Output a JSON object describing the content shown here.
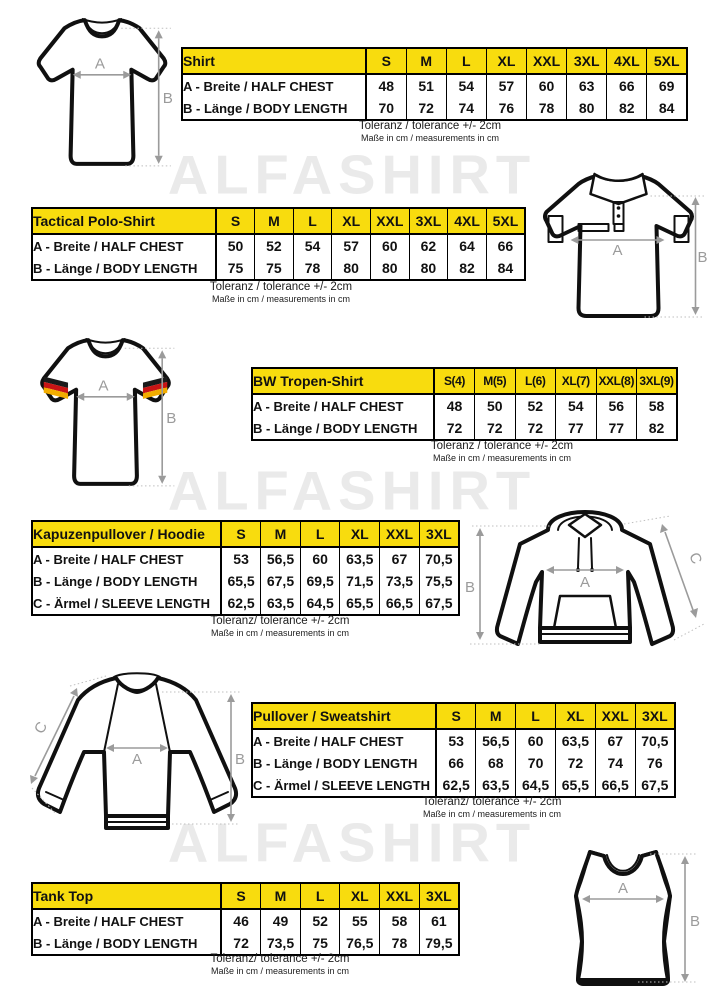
{
  "watermark": {
    "text": "ALFASHIRT"
  },
  "labels": {
    "a": "A",
    "b": "B",
    "c": "C"
  },
  "colors": {
    "header_yellow": "#F8DC0E",
    "table_border": "#000000",
    "arrow_gray": "#9b9b9b",
    "watermark_gray": "#eaeaea",
    "flag_black": "#1a1a1a",
    "flag_red": "#c81414",
    "flag_gold": "#f2ad00"
  },
  "tables": [
    {
      "id": "shirt",
      "title": "Shirt",
      "sizes": [
        "S",
        "M",
        "L",
        "XL",
        "XXL",
        "3XL",
        "4XL",
        "5XL"
      ],
      "rows": [
        {
          "label": "A -  Breite / HALF CHEST",
          "values": [
            "48",
            "51",
            "54",
            "57",
            "60",
            "63",
            "66",
            "69"
          ]
        },
        {
          "label": "B -  Länge / BODY LENGTH",
          "values": [
            "70",
            "72",
            "74",
            "76",
            "78",
            "80",
            "82",
            "84"
          ]
        }
      ],
      "tolerance": "Toleranz / tolerance +/- 2cm",
      "note": "Maße in cm / measurements in cm"
    },
    {
      "id": "tactical-polo",
      "title": "Tactical Polo-Shirt",
      "sizes": [
        "S",
        "M",
        "L",
        "XL",
        "XXL",
        "3XL",
        "4XL",
        "5XL"
      ],
      "rows": [
        {
          "label": "A -  Breite / HALF CHEST",
          "values": [
            "50",
            "52",
            "54",
            "57",
            "60",
            "62",
            "64",
            "66"
          ]
        },
        {
          "label": "B -  Länge / BODY LENGTH",
          "values": [
            "75",
            "75",
            "78",
            "80",
            "80",
            "80",
            "82",
            "84"
          ]
        }
      ],
      "tolerance": "Toleranz / tolerance +/- 2cm",
      "note": "Maße in cm / measurements in cm"
    },
    {
      "id": "bw-tropen-shirt",
      "title": "BW Tropen-Shirt",
      "sizes": [
        "S(4)",
        "M(5)",
        "L(6)",
        "XL(7)",
        "XXL(8)",
        "3XL(9)"
      ],
      "rows": [
        {
          "label": "A -  Breite / HALF CHEST",
          "values": [
            "48",
            "50",
            "52",
            "54",
            "56",
            "58"
          ]
        },
        {
          "label": "B -  Länge / BODY LENGTH",
          "values": [
            "72",
            "72",
            "72",
            "77",
            "77",
            "82"
          ]
        }
      ],
      "tolerance": "Toleranz / tolerance +/- 2cm",
      "note": "Maße in cm / measurements in cm"
    },
    {
      "id": "hoodie",
      "title": "Kapuzenpullover / Hoodie",
      "sizes": [
        "S",
        "M",
        "L",
        "XL",
        "XXL",
        "3XL"
      ],
      "rows": [
        {
          "label": "A -  Breite / HALF CHEST",
          "values": [
            "53",
            "56,5",
            "60",
            "63,5",
            "67",
            "70,5"
          ]
        },
        {
          "label": "B -  Länge / BODY LENGTH",
          "values": [
            "65,5",
            "67,5",
            "69,5",
            "71,5",
            "73,5",
            "75,5"
          ]
        },
        {
          "label": "C -  Ärmel / SLEEVE LENGTH",
          "values": [
            "62,5",
            "63,5",
            "64,5",
            "65,5",
            "66,5",
            "67,5"
          ]
        }
      ],
      "tolerance": "Toleranz/ tolerance +/- 2cm",
      "note": "Maße in cm / measurements in cm"
    },
    {
      "id": "pullover-sweatshirt",
      "title": "Pullover / Sweatshirt",
      "sizes": [
        "S",
        "M",
        "L",
        "XL",
        "XXL",
        "3XL"
      ],
      "rows": [
        {
          "label": "A -  Breite / HALF CHEST",
          "values": [
            "53",
            "56,5",
            "60",
            "63,5",
            "67",
            "70,5"
          ]
        },
        {
          "label": "B -  Länge / BODY LENGTH",
          "values": [
            "66",
            "68",
            "70",
            "72",
            "74",
            "76"
          ]
        },
        {
          "label": "C -  Ärmel / SLEEVE LENGTH",
          "values": [
            "62,5",
            "63,5",
            "64,5",
            "65,5",
            "66,5",
            "67,5"
          ]
        }
      ],
      "tolerance": "Toleranz/ tolerance +/- 2cm",
      "note": "Maße in cm / measurements in cm"
    },
    {
      "id": "tank-top",
      "title": "Tank Top",
      "sizes": [
        "S",
        "M",
        "L",
        "XL",
        "XXL",
        "3XL"
      ],
      "rows": [
        {
          "label": "A -  Breite / HALF CHEST",
          "values": [
            "46",
            "49",
            "52",
            "55",
            "58",
            "61"
          ]
        },
        {
          "label": "B -  Länge / BODY LENGTH",
          "values": [
            "72",
            "73,5",
            "75",
            "76,5",
            "78",
            "79,5"
          ]
        }
      ],
      "tolerance": "Toleranz/ tolerance +/- 2cm",
      "note": "Maße in cm / measurements in cm"
    }
  ]
}
